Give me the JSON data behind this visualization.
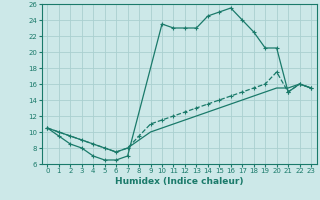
{
  "xlabel": "Humidex (Indice chaleur)",
  "bg_color": "#cce8e8",
  "grid_color": "#aad0d0",
  "line_color": "#1a7a6a",
  "xlim": [
    -0.5,
    23.5
  ],
  "ylim": [
    6,
    26
  ],
  "xticks": [
    0,
    1,
    2,
    3,
    4,
    5,
    6,
    7,
    8,
    9,
    10,
    11,
    12,
    13,
    14,
    15,
    16,
    17,
    18,
    19,
    20,
    21,
    22,
    23
  ],
  "yticks": [
    6,
    8,
    10,
    12,
    14,
    16,
    18,
    20,
    22,
    24,
    26
  ],
  "line1_x": [
    0,
    1,
    2,
    3,
    4,
    5,
    6,
    7,
    10,
    11,
    12,
    13,
    14,
    15,
    16,
    17,
    18,
    19,
    20,
    21,
    22,
    23
  ],
  "line1_y": [
    10.5,
    9.5,
    8.5,
    8.0,
    7.0,
    6.5,
    6.5,
    7.0,
    23.5,
    23.0,
    23.0,
    23.0,
    24.5,
    25.0,
    25.5,
    24.0,
    22.5,
    20.5,
    20.5,
    15.0,
    16.0,
    15.5
  ],
  "line2_x": [
    0,
    1,
    2,
    3,
    4,
    5,
    6,
    7,
    8,
    9,
    10,
    11,
    12,
    13,
    14,
    15,
    16,
    17,
    18,
    19,
    20,
    21,
    22,
    23
  ],
  "line2_y": [
    10.5,
    10.0,
    9.5,
    9.0,
    8.5,
    8.0,
    7.5,
    8.0,
    9.5,
    11.0,
    11.5,
    12.0,
    12.5,
    13.0,
    13.5,
    14.0,
    14.5,
    15.0,
    15.5,
    16.0,
    17.5,
    15.0,
    16.0,
    15.5
  ],
  "line3_x": [
    0,
    1,
    2,
    3,
    4,
    5,
    6,
    7,
    8,
    9,
    10,
    11,
    12,
    13,
    14,
    15,
    16,
    17,
    18,
    19,
    20,
    21,
    22,
    23
  ],
  "line3_y": [
    10.5,
    10.0,
    9.5,
    9.0,
    8.5,
    8.0,
    7.5,
    8.0,
    9.0,
    10.0,
    10.5,
    11.0,
    11.5,
    12.0,
    12.5,
    13.0,
    13.5,
    14.0,
    14.5,
    15.0,
    15.5,
    15.5,
    16.0,
    15.5
  ]
}
